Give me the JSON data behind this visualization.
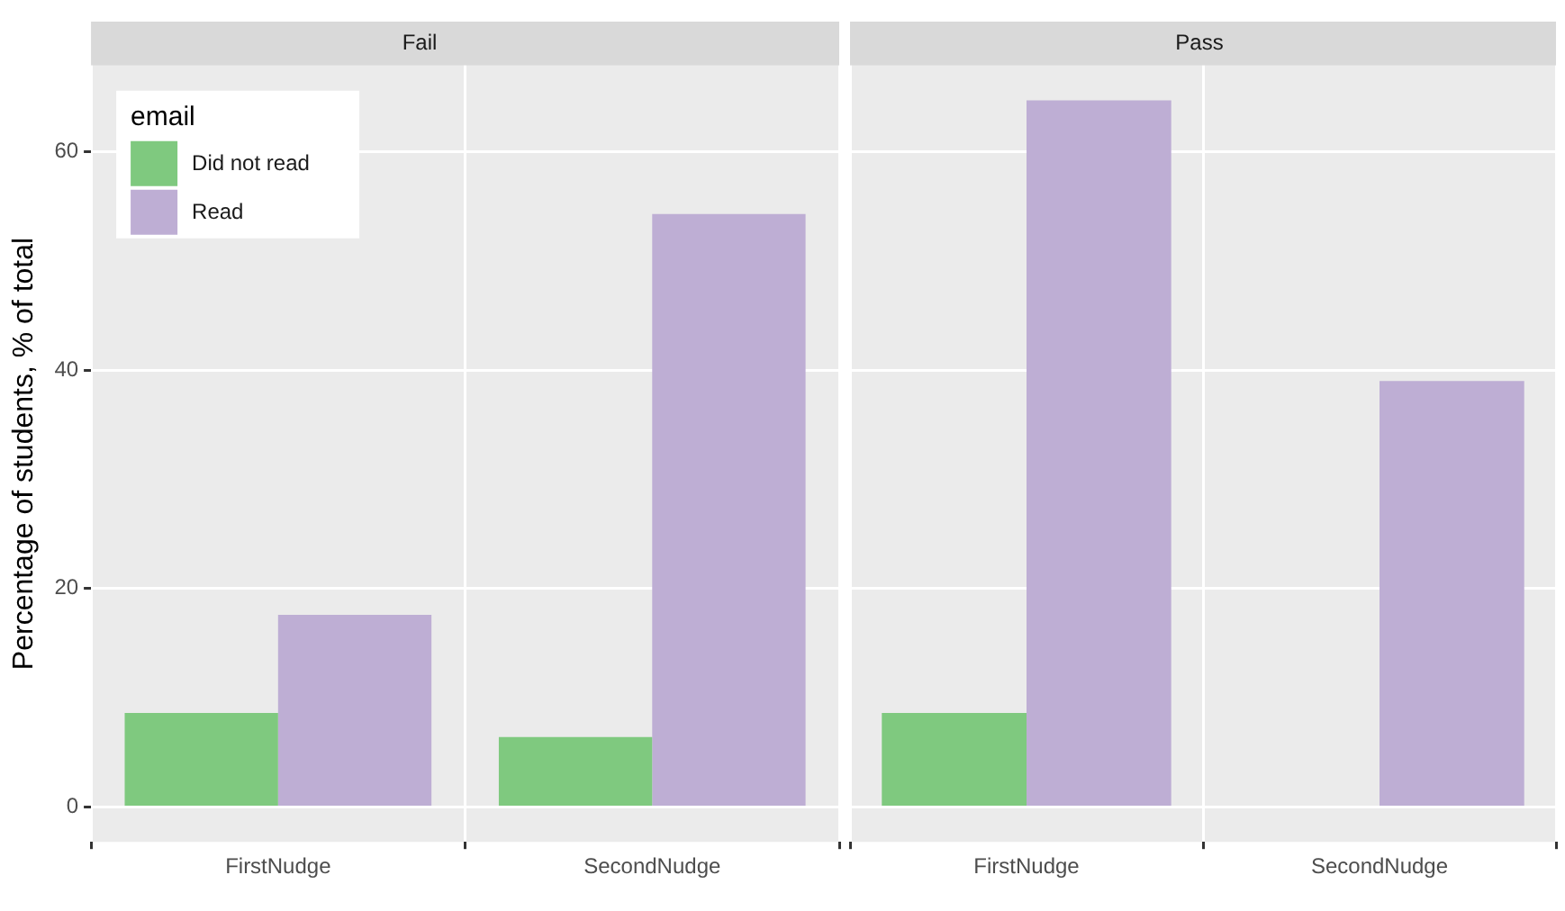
{
  "chart_data": [
    {
      "type": "bar",
      "title": "Fail",
      "ylabel": "Percentage of students, % of total",
      "legend_title": "email",
      "legend": "top left",
      "grid": true,
      "categories": [
        "FirstNudge",
        "SecondNudge"
      ],
      "ylim": [
        -3.2,
        67.9
      ],
      "yticks": [
        0,
        20,
        40,
        60
      ],
      "series": [
        {
          "name": "Did not read",
          "color": "#7fc97f",
          "values": [
            8.6,
            6.4
          ]
        },
        {
          "name": "Read",
          "color": "#beaed4",
          "values": [
            17.6,
            54.3
          ]
        }
      ]
    },
    {
      "type": "bar",
      "title": "Pass",
      "grid": true,
      "tick_labels": "x",
      "categories": [
        "FirstNudge",
        "SecondNudge"
      ],
      "ylim": [
        -3.2,
        67.9
      ],
      "yticks": [
        0,
        20,
        40,
        60
      ],
      "series": [
        {
          "color": "#7fc97f",
          "values": [
            8.6,
            null
          ]
        },
        {
          "color": "#beaed4",
          "values": [
            64.7,
            39.0
          ]
        }
      ]
    }
  ]
}
